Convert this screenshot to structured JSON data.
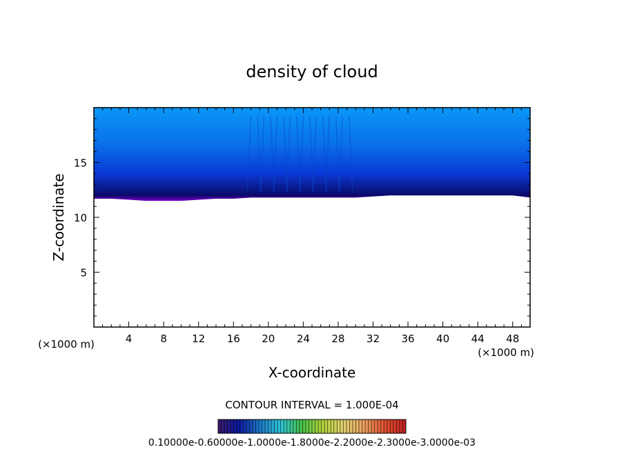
{
  "chart_data": {
    "type": "heatmap",
    "title": "density of cloud",
    "xlabel": "X-coordinate",
    "ylabel": "Z-coordinate",
    "x_unit_label_left": "(×1000 m)",
    "x_unit_label_right": "(×1000 m)",
    "xlim": [
      0,
      50
    ],
    "ylim": [
      0,
      20
    ],
    "x_ticks": [
      4,
      8,
      12,
      16,
      20,
      24,
      28,
      32,
      36,
      40,
      44,
      48
    ],
    "y_ticks": [
      5,
      10,
      15
    ],
    "contour_interval_label": "CONTOUR INTERVAL = 1.000E-04",
    "colorbar_label": "0.10000e-0.60000e-1.0000e-1.8000e-2.2000e-2.3000e-3.0000e-03",
    "colorbar_stops": [
      "#3a1a6a",
      "#0b1aa0",
      "#1e78c8",
      "#2ec4d6",
      "#46c24a",
      "#b2d238",
      "#e0d070",
      "#e8a060",
      "#e05030",
      "#c02020"
    ],
    "cloud_base_km": [
      [
        0,
        11.7
      ],
      [
        2,
        11.7
      ],
      [
        4,
        11.6
      ],
      [
        6,
        11.5
      ],
      [
        8,
        11.5
      ],
      [
        10,
        11.5
      ],
      [
        12,
        11.6
      ],
      [
        14,
        11.7
      ],
      [
        16,
        11.7
      ],
      [
        18,
        11.8
      ],
      [
        20,
        11.8
      ],
      [
        22,
        11.8
      ],
      [
        24,
        11.8
      ],
      [
        26,
        11.8
      ],
      [
        28,
        11.8
      ],
      [
        30,
        11.8
      ],
      [
        32,
        11.9
      ],
      [
        34,
        12.0
      ],
      [
        36,
        12.0
      ],
      [
        38,
        12.0
      ],
      [
        40,
        12.0
      ],
      [
        42,
        12.0
      ],
      [
        44,
        12.0
      ],
      [
        46,
        12.0
      ],
      [
        48,
        12.0
      ],
      [
        50,
        11.8
      ]
    ],
    "cloud_top_km": 20,
    "fill_colors": {
      "bottom": "#7a00c8",
      "lower": "#0a0a6a",
      "middle": "#0a3ad8",
      "upper": "#0a72ea",
      "top": "#0a96f8"
    }
  }
}
